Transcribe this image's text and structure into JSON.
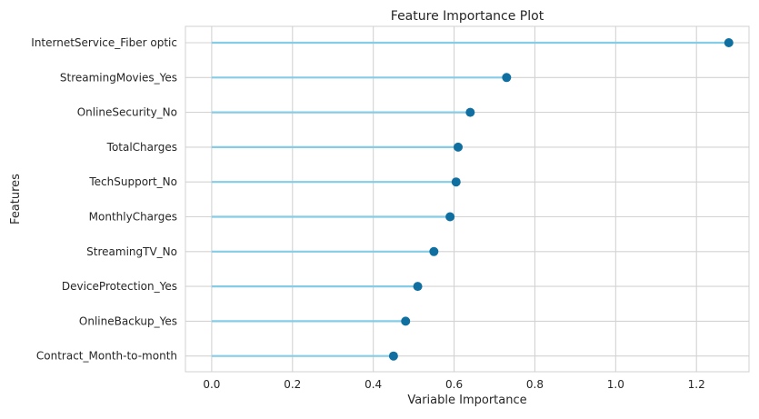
{
  "chart_data": {
    "type": "lollipop",
    "title": "Feature Importance Plot",
    "xlabel": "Variable Importance",
    "ylabel": "Features",
    "xlim": [
      -0.065,
      1.33
    ],
    "xticks": [
      "0.0",
      "0.2",
      "0.4",
      "0.6",
      "0.8",
      "1.0",
      "1.2"
    ],
    "grid": true,
    "features": [
      "InternetService_Fiber optic",
      "StreamingMovies_Yes",
      "OnlineSecurity_No",
      "TotalCharges",
      "TechSupport_No",
      "MonthlyCharges",
      "StreamingTV_No",
      "DeviceProtection_Yes",
      "OnlineBackup_Yes",
      "Contract_Month-to-month"
    ],
    "values": [
      1.28,
      0.73,
      0.64,
      0.61,
      0.605,
      0.59,
      0.55,
      0.51,
      0.48,
      0.45
    ],
    "colors": {
      "stem": "#85cce6",
      "marker": "#0f6fa0",
      "grid": "#d3d3d3",
      "frame": "#d0d0d0",
      "text": "#262626"
    }
  }
}
